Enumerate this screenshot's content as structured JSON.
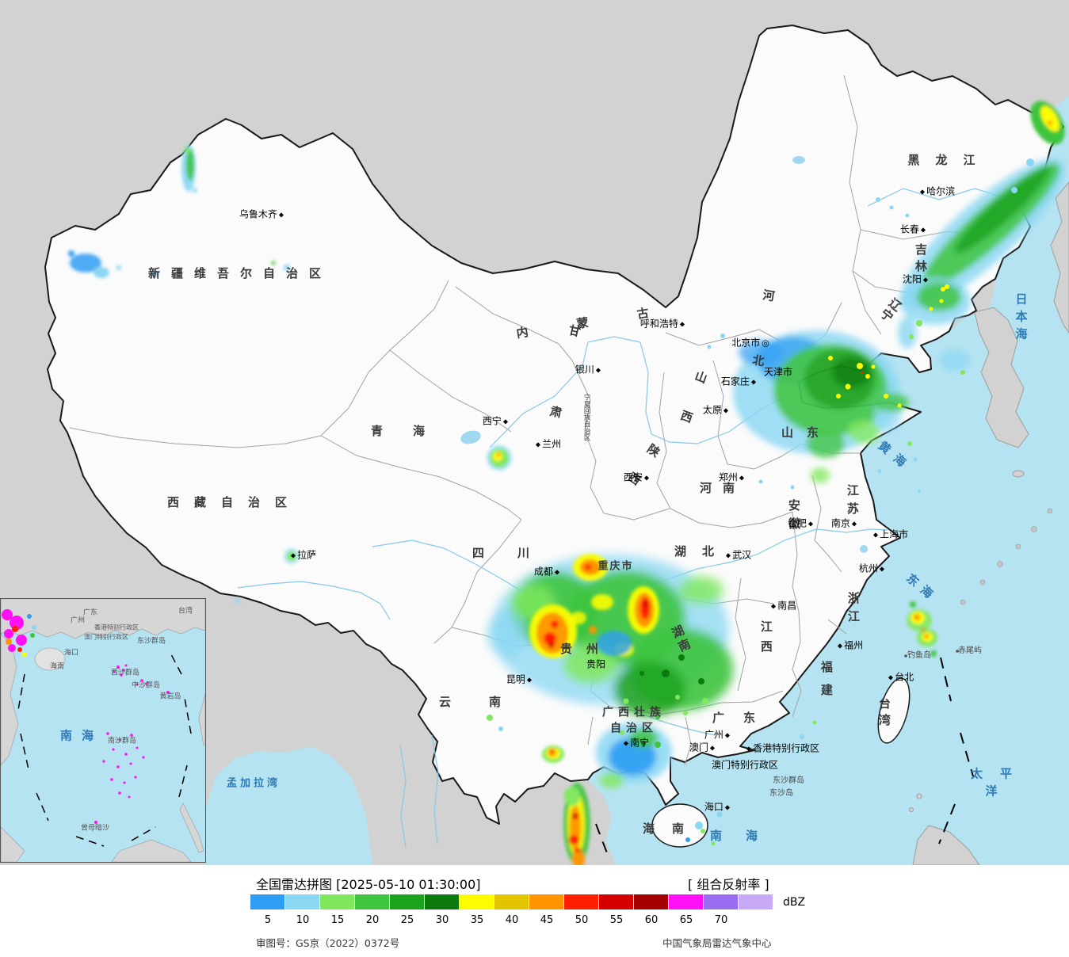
{
  "legend": {
    "title": "全国雷达拼图 [2025-05-10 01:30:00]",
    "product": "[ 组合反射率 ]",
    "unit": "dBZ",
    "tick_values": [
      5,
      10,
      15,
      20,
      25,
      30,
      35,
      40,
      45,
      50,
      55,
      60,
      65,
      70
    ],
    "colors": [
      "#2e9df3",
      "#8ad7f3",
      "#81e85e",
      "#3ec43e",
      "#1da21d",
      "#0c7a0c",
      "#fdfd00",
      "#e3c400",
      "#ff9400",
      "#fe1e00",
      "#d40000",
      "#a50000",
      "#ff10f5",
      "#9a6cf0",
      "#c6aaf5"
    ],
    "approval": "审图号：GS京（2022）0372号",
    "credit": "中国气象局雷达气象中心"
  },
  "map": {
    "marker": "◆",
    "capital_marker": "◎",
    "seas": {
      "japan": "日本海",
      "yellow": "黄海",
      "east": "东海",
      "south": "南海",
      "pacific": "太平洋",
      "bengal": "孟加拉湾"
    },
    "provinces": {
      "heilongjiang": "黑龙江",
      "jilin": "吉林",
      "liaoning": "辽宁",
      "neimenggu": "内蒙古",
      "xinjiang": "新疆维吾尔自治区",
      "gansu": "甘肃",
      "ningxia": "宁夏回族自治区",
      "shaanxi": "陕西",
      "shanxi": "山西",
      "hebei": "河北",
      "shandong": "山东",
      "henan": "河南",
      "jiangsu": "江苏",
      "anhui": "安徽",
      "hubei": "湖北",
      "sichuan": "四川",
      "chongqing": "重庆市",
      "guizhou": "贵州",
      "yunnan": "云南",
      "guangxi": "广西壮族\n自治区",
      "guangdong": "广东",
      "hunan": "湖南",
      "jiangxi": "江西",
      "zhejiang": "浙江",
      "fujian": "福建",
      "taiwan": "台湾",
      "hainan": "海南",
      "qinghai": "青海",
      "xizang": "西藏自治区"
    },
    "cities": {
      "urumqi": "乌鲁木齐",
      "lasa": "拉萨",
      "xining": "西宁",
      "lanzhou": "兰州",
      "yinchuan": "银川",
      "huhehaote": "呼和浩特",
      "beijing": "北京市",
      "tianjin": "天津市",
      "shijiazhuang": "石家庄",
      "taiyuan": "太原",
      "xian": "西安",
      "zhengzhou": "郑州",
      "wuhan": "武汉",
      "hefei": "合肥",
      "nanjing": "南京",
      "shanghai": "上海市",
      "hangzhou": "杭州",
      "nanchang": "南昌",
      "fuzhou": "福州",
      "taibei": "台北",
      "guangzhou": "广州",
      "aomen": "澳门",
      "xianggang": "香港特别行政区",
      "aomen_xzq": "澳门特别行政区",
      "haikou": "海口",
      "nanning": "南宁",
      "kunming": "昆明",
      "guiyang": "贵阳",
      "chengdu": "成都",
      "shenyang": "沈阳",
      "changchun": "长春",
      "haerbin": "哈尔滨"
    },
    "islands": {
      "diaoyu": "钓鱼岛",
      "chiwei": "赤尾屿",
      "dongsha_qundao": "东沙群岛",
      "dongsha_dao": "东沙岛"
    },
    "inset": {
      "nanhai": "南海",
      "guangdong": "广东",
      "guangzhou": "广州",
      "hongkong": "香港特别行政区",
      "macau": "澳门特别行政区",
      "taiwan": "台湾",
      "dongsha": "东沙群岛",
      "haikou": "海口",
      "hainan": "海南",
      "xisha": "西沙群岛",
      "zhongsha": "中沙群岛",
      "huangyan": "黄岩岛",
      "nansha": "南沙群岛",
      "zengmu": "曾母暗沙"
    }
  }
}
